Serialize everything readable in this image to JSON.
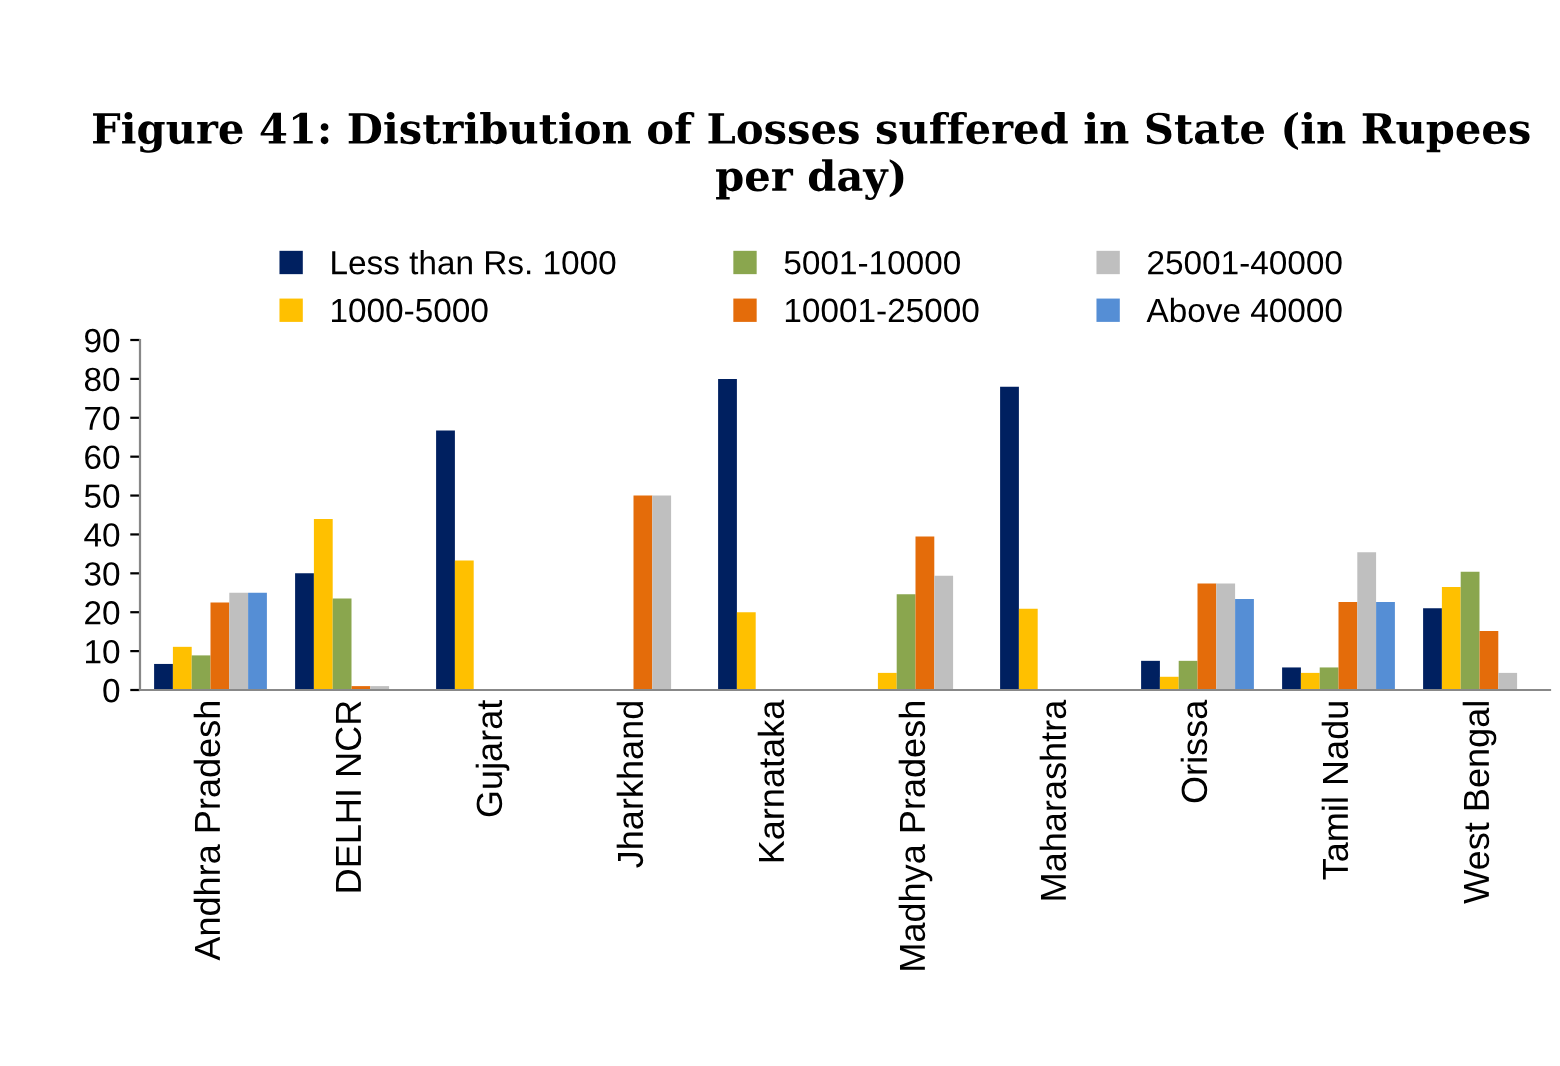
{
  "chart_data": {
    "type": "bar",
    "title": "Figure 41: Distribution of Losses suffered in State (in Rupees per day)",
    "categories": [
      "Andhra Pradesh",
      "DELHI NCR",
      "Gujarat",
      "Jharkhand",
      "Karnataka",
      "Madhya Pradesh",
      "Maharashtra",
      "Orissa",
      "Tamil Nadu",
      "West Bengal"
    ],
    "series": [
      {
        "name": "Less than Rs. 1000",
        "color": "#002060",
        "values": [
          6.7,
          30,
          66.7,
          0,
          80,
          0,
          78,
          7.5,
          5.8,
          21
        ]
      },
      {
        "name": "1000-5000",
        "color": "#ffc000",
        "values": [
          11.1,
          44,
          33.3,
          0,
          20,
          4.4,
          20.9,
          3.4,
          4.4,
          26.5
        ]
      },
      {
        "name": "5001-10000",
        "color": "#8aa64e",
        "values": [
          8.9,
          23.5,
          0,
          0,
          0,
          24.6,
          0,
          7.5,
          5.8,
          30.4
        ]
      },
      {
        "name": "10001-25000",
        "color": "#e46c0a",
        "values": [
          22.5,
          1,
          0,
          50,
          0,
          39.5,
          0,
          27.4,
          22.6,
          15.2
        ]
      },
      {
        "name": "25001-40000",
        "color": "#bfbfbf",
        "values": [
          25,
          1,
          0,
          50,
          0,
          29.4,
          0,
          27.4,
          35.4,
          4.4
        ]
      },
      {
        "name": "Above 40000",
        "color": "#558ed5",
        "values": [
          25,
          0,
          0,
          0,
          0,
          0,
          0,
          23.4,
          22.6,
          0
        ]
      }
    ],
    "ylim": [
      0,
      90
    ],
    "yticks": [
      0,
      10,
      20,
      30,
      40,
      50,
      60,
      70,
      80,
      90
    ],
    "grid": false,
    "legend": "top"
  }
}
